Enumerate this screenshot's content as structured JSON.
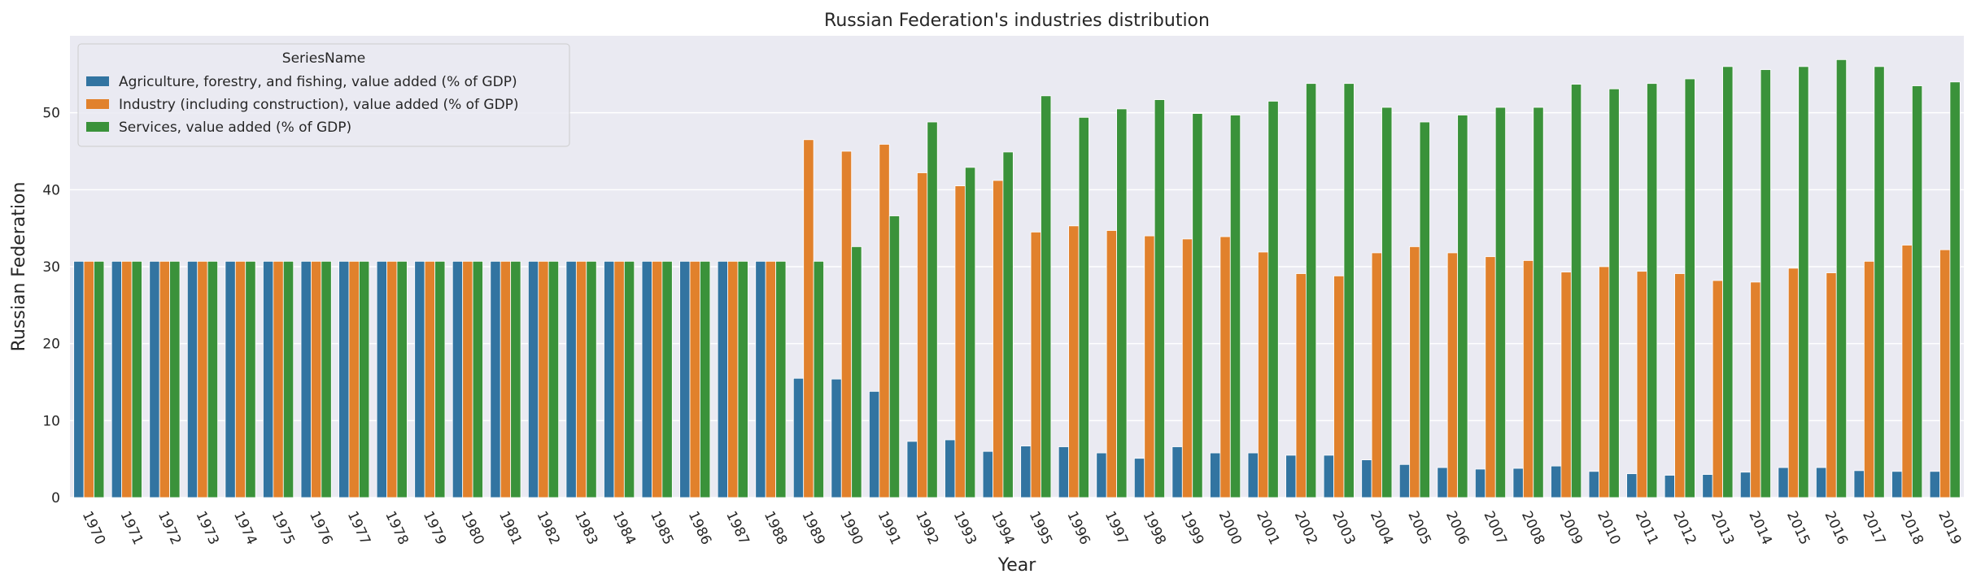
{
  "chart_data": {
    "type": "bar",
    "title": "Russian Federation's industries distribution",
    "xlabel": "Year",
    "ylabel": "Russian Federation",
    "ylim": [
      0,
      60
    ],
    "yticks": [
      0,
      10,
      20,
      30,
      40,
      50
    ],
    "grid": true,
    "legend_title": "SeriesName",
    "legend_position": "top-left",
    "categories": [
      "1970",
      "1971",
      "1972",
      "1973",
      "1974",
      "1975",
      "1976",
      "1977",
      "1978",
      "1979",
      "1980",
      "1981",
      "1982",
      "1983",
      "1984",
      "1985",
      "1986",
      "1987",
      "1988",
      "1989",
      "1990",
      "1991",
      "1992",
      "1993",
      "1994",
      "1995",
      "1996",
      "1997",
      "1998",
      "1999",
      "2000",
      "2001",
      "2002",
      "2003",
      "2004",
      "2005",
      "2006",
      "2007",
      "2008",
      "2009",
      "2010",
      "2011",
      "2012",
      "2013",
      "2014",
      "2015",
      "2016",
      "2017",
      "2018",
      "2019"
    ],
    "series": [
      {
        "name": "Agriculture, forestry, and fishing, value added (% of GDP)",
        "color": "#3274a1",
        "values": [
          30.7,
          30.7,
          30.7,
          30.7,
          30.7,
          30.7,
          30.7,
          30.7,
          30.7,
          30.7,
          30.7,
          30.7,
          30.7,
          30.7,
          30.7,
          30.7,
          30.7,
          30.7,
          30.7,
          15.5,
          15.4,
          13.8,
          7.3,
          7.5,
          6.0,
          6.7,
          6.6,
          5.8,
          5.1,
          6.6,
          5.8,
          5.8,
          5.5,
          5.5,
          4.9,
          4.3,
          3.9,
          3.7,
          3.8,
          4.1,
          3.4,
          3.1,
          2.9,
          3.0,
          3.3,
          3.9,
          3.9,
          3.5,
          3.4,
          3.4
        ]
      },
      {
        "name": "Industry (including construction), value added (% of GDP)",
        "color": "#e1812c",
        "values": [
          30.7,
          30.7,
          30.7,
          30.7,
          30.7,
          30.7,
          30.7,
          30.7,
          30.7,
          30.7,
          30.7,
          30.7,
          30.7,
          30.7,
          30.7,
          30.7,
          30.7,
          30.7,
          30.7,
          46.5,
          45.0,
          45.9,
          42.2,
          40.5,
          41.2,
          34.5,
          35.3,
          34.7,
          34.0,
          33.6,
          33.9,
          31.9,
          29.1,
          28.8,
          31.8,
          32.6,
          31.8,
          31.3,
          30.8,
          29.3,
          30.0,
          29.4,
          29.1,
          28.2,
          28.0,
          29.8,
          29.2,
          30.7,
          32.8,
          32.2
        ]
      },
      {
        "name": "Services, value added (% of GDP)",
        "color": "#3a923a",
        "values": [
          30.7,
          30.7,
          30.7,
          30.7,
          30.7,
          30.7,
          30.7,
          30.7,
          30.7,
          30.7,
          30.7,
          30.7,
          30.7,
          30.7,
          30.7,
          30.7,
          30.7,
          30.7,
          30.7,
          30.7,
          32.6,
          36.6,
          48.8,
          42.9,
          44.9,
          52.2,
          49.4,
          50.5,
          51.7,
          49.9,
          49.7,
          51.5,
          53.8,
          53.8,
          50.7,
          48.8,
          49.7,
          50.7,
          50.7,
          53.7,
          53.1,
          53.8,
          54.4,
          56.0,
          55.6,
          56.0,
          56.9,
          56.0,
          53.5,
          54.0
        ]
      }
    ]
  }
}
